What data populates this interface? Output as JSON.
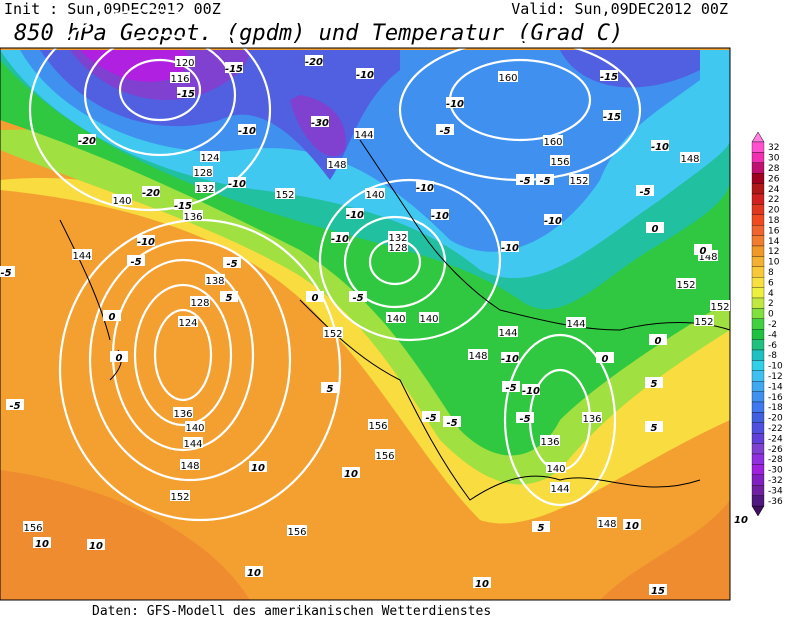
{
  "header": {
    "init": "Init : Sun,09DEC2012 00Z",
    "valid": "Valid: Sun,09DEC2012 00Z",
    "title": "850 hPa Geopot. (gpdm) und Temperatur (Grad C)"
  },
  "footer": "Daten: GFS-Modell des amerikanischen Wetterdienstes",
  "colorbar": {
    "ticks": [
      32,
      30,
      28,
      26,
      24,
      22,
      20,
      18,
      16,
      14,
      12,
      10,
      8,
      6,
      4,
      2,
      0,
      -2,
      -4,
      -6,
      -8,
      -10,
      -12,
      -14,
      -16,
      -18,
      -20,
      -22,
      -24,
      -26,
      -28,
      -30,
      -32,
      -34,
      -36
    ],
    "colors": [
      "#ff50d0",
      "#f030b0",
      "#c01070",
      "#a00020",
      "#b01818",
      "#d02020",
      "#e03820",
      "#f04a20",
      "#f06430",
      "#f07c30",
      "#f09828",
      "#f4b030",
      "#f8c838",
      "#f8e040",
      "#eef040",
      "#c0e840",
      "#80e040",
      "#40d040",
      "#20c040",
      "#20c080",
      "#20c0c0",
      "#30d0e8",
      "#40c0f0",
      "#40a8f0",
      "#4090f0",
      "#4078f0",
      "#4060e0",
      "#5050e0",
      "#6040d8",
      "#8040d0",
      "#9030e0",
      "#a020e0",
      "#8020c0",
      "#7020a0",
      "#501880"
    ]
  },
  "geopotential_labels": [
    120,
    116,
    124,
    128,
    132,
    136,
    140,
    144,
    138,
    128,
    124,
    136,
    140,
    144,
    148,
    152,
    156,
    156,
    156,
    156,
    152,
    148,
    144,
    144,
    148,
    140,
    136,
    136,
    140,
    132,
    128,
    140,
    140,
    160,
    160,
    156,
    152,
    148,
    148,
    152,
    152,
    152,
    144,
    144,
    148,
    152
  ],
  "temperature_labels": [
    -15,
    -20,
    -15,
    -20,
    -30,
    -10,
    -15,
    -20,
    -10,
    -10,
    -5,
    0,
    0,
    -5,
    5,
    0,
    -5,
    -10,
    -5,
    -10,
    -5,
    -10,
    -10,
    -10,
    -5,
    -5,
    -10,
    -15,
    -15,
    -10,
    -5,
    0,
    0,
    -10,
    -10,
    5,
    10,
    10,
    10,
    10,
    10,
    10,
    10,
    5,
    10,
    15,
    -5,
    -5,
    -10,
    -5,
    -10,
    0,
    5,
    0,
    -5,
    5,
    -5
  ]
}
